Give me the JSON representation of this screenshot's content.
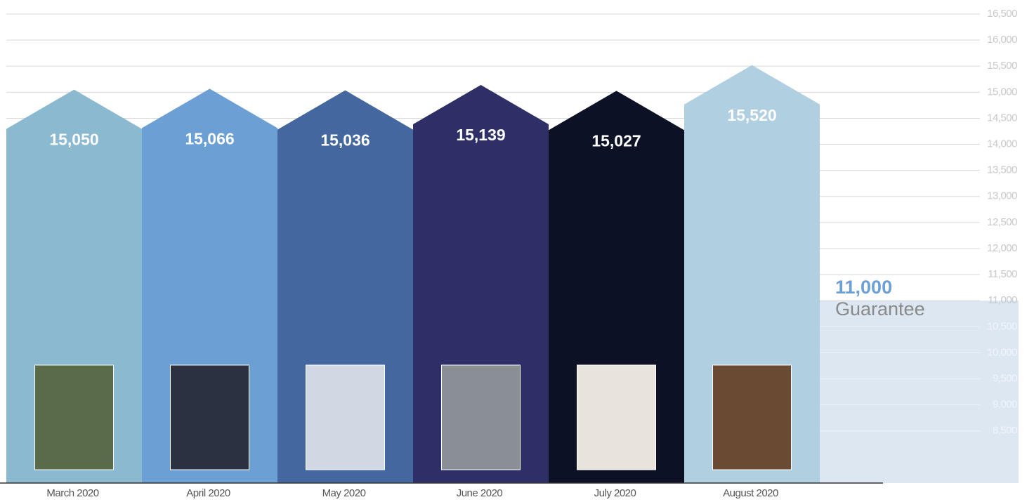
{
  "chart_data": {
    "type": "bar",
    "categories": [
      "March 2020",
      "April 2020",
      "May 2020",
      "June 2020",
      "July 2020",
      "August 2020"
    ],
    "values": [
      15050,
      15066,
      15036,
      15139,
      15027,
      15520
    ],
    "value_labels": [
      "15,050",
      "15,066",
      "15,036",
      "15,139",
      "15,027",
      "15,520"
    ],
    "colors": [
      "#8ab9d0",
      "#6c9fd3",
      "#43679e",
      "#2e2f66",
      "#0c1125",
      "#b0d0e2"
    ],
    "ylim": [
      7500,
      16500
    ],
    "yticks": [
      {
        "value": 8500,
        "label": "8,500"
      },
      {
        "value": 9000,
        "label": "9,000"
      },
      {
        "value": 9500,
        "label": "9,500"
      },
      {
        "value": 10000,
        "label": "10,000"
      },
      {
        "value": 10500,
        "label": "10,500"
      },
      {
        "value": 11000,
        "label": "11,000"
      },
      {
        "value": 11500,
        "label": "11,500"
      },
      {
        "value": 12000,
        "label": "12,000"
      },
      {
        "value": 12500,
        "label": "12,500"
      },
      {
        "value": 13000,
        "label": "13,000"
      },
      {
        "value": 13500,
        "label": "13,500"
      },
      {
        "value": 14000,
        "label": "14,000"
      },
      {
        "value": 14500,
        "label": "14,500"
      },
      {
        "value": 15000,
        "label": "15,000"
      },
      {
        "value": 15500,
        "label": "15,500"
      },
      {
        "value": 16000,
        "label": "16,000"
      },
      {
        "value": 16500,
        "label": "16,500"
      }
    ],
    "grid": true,
    "guarantee": {
      "value": 11000,
      "label": "11,000",
      "text": "Guarantee"
    }
  }
}
